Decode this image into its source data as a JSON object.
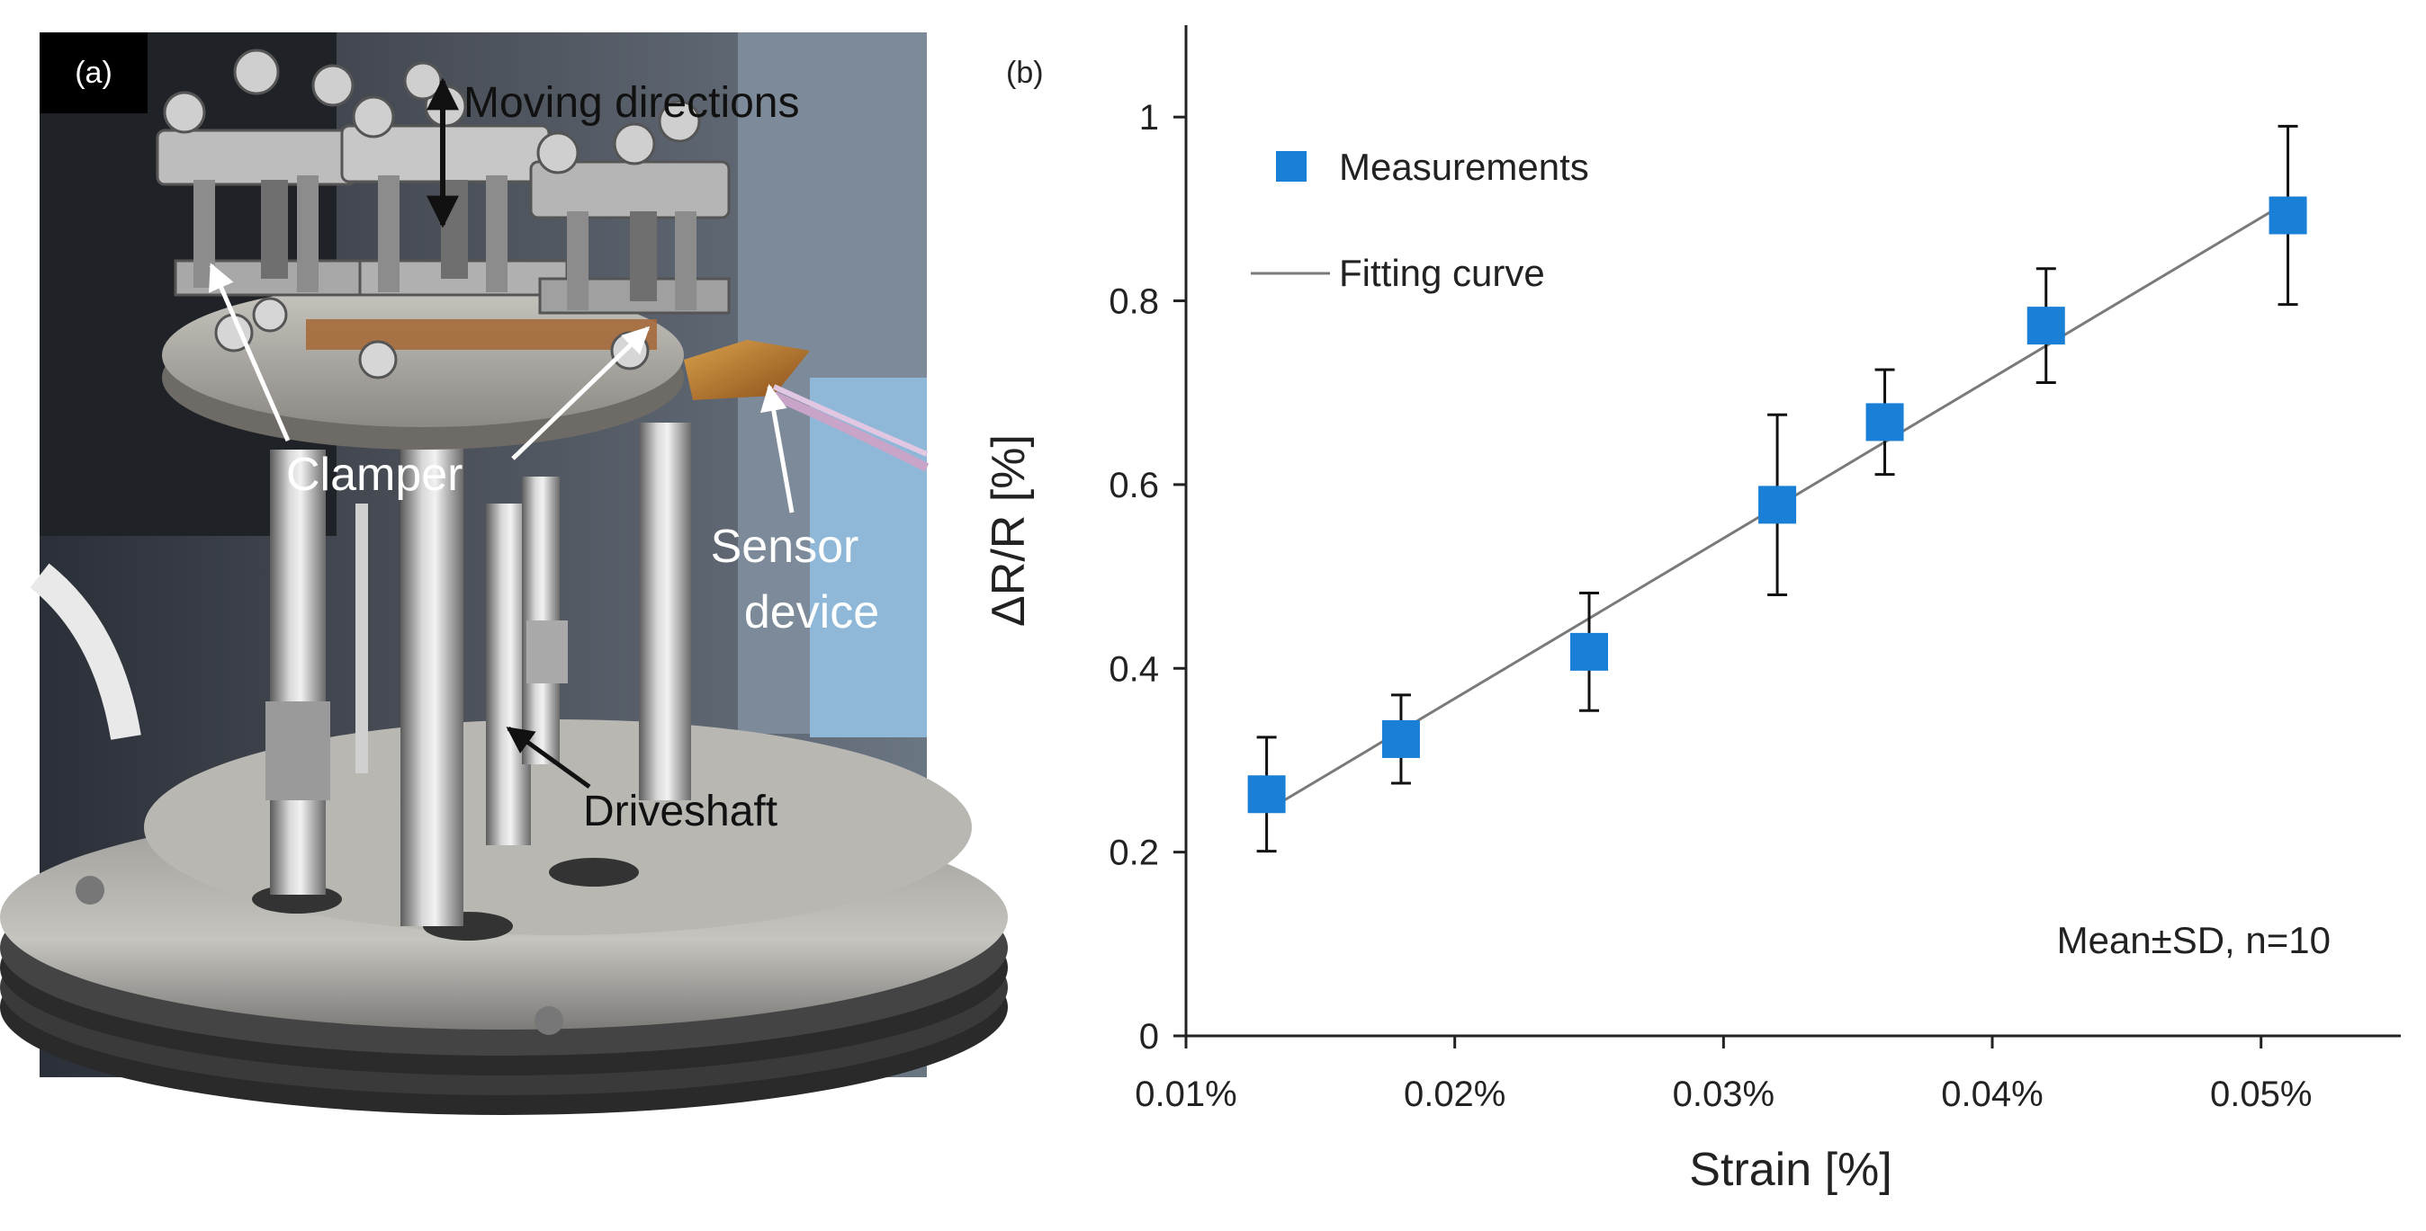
{
  "panel_a": {
    "tag": "(a)",
    "labels": {
      "moving": "Moving directions",
      "clamper": "Clamper",
      "sensor_line1": "Sensor",
      "sensor_line2": "device",
      "driveshaft": "Driveshaft"
    }
  },
  "panel_b": {
    "tag": "(b)",
    "annotation": "Mean±SD, n=10"
  },
  "colors": {
    "marker": "#1a7fd6",
    "fit_line": "#7a7a7a",
    "error_bar": "#111111",
    "axis": "#222222"
  },
  "chart_data": {
    "type": "scatter",
    "xlabel": "Strain [%]",
    "ylabel": "ΔR/R [%]",
    "xlim": [
      0.01,
      0.0552
    ],
    "ylim": [
      0,
      1.1
    ],
    "xticks": [
      0.01,
      0.02,
      0.03,
      0.04,
      0.05
    ],
    "xtick_labels": [
      "0.01%",
      "0.02%",
      "0.03%",
      "0.04%",
      "0.05%"
    ],
    "yticks": [
      0,
      0.2,
      0.4,
      0.6,
      0.8,
      1.0
    ],
    "ytick_labels": [
      "0",
      "0.2",
      "0.4",
      "0.6",
      "0.8",
      "1"
    ],
    "legend": [
      "Measurements",
      "Fitting curve"
    ],
    "series": [
      {
        "name": "Measurements",
        "x": [
          0.013,
          0.018,
          0.025,
          0.032,
          0.036,
          0.042,
          0.051
        ],
        "y": [
          0.263,
          0.323,
          0.418,
          0.578,
          0.668,
          0.773,
          0.893
        ],
        "error": [
          0.062,
          0.048,
          0.064,
          0.098,
          0.057,
          0.062,
          0.097
        ]
      }
    ],
    "fit": {
      "name": "Fitting curve",
      "x": [
        0.013,
        0.051
      ],
      "y": [
        0.245,
        0.908
      ]
    }
  }
}
